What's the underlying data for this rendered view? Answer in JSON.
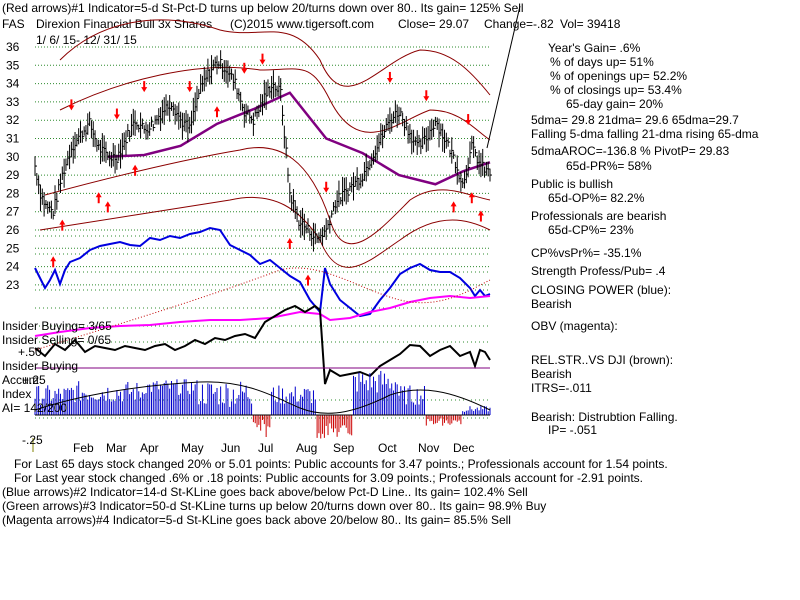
{
  "header": {
    "line1": "(Red arrows)#1 Indicator=5-d St-Pct-D turns up below 20/turns down over 80.. Its gain= 125% Sell",
    "symbol": "FAS",
    "name": "Direxion Financial Bull 3x Shares",
    "copyright": "(C)2015 www.tigersoft.com",
    "close": "Close=   29.07",
    "change": "Change=-.82",
    "vol": "Vol=  39418",
    "date_range": "1/ 6/ 15-  12/ 31/ 15"
  },
  "right_panel": [
    "Year's Gain= .6%",
    "% of days up= 51%",
    "% of openings up= 52.2%",
    "% of closings up= 53.4%",
    "65-day gain= 20%",
    "5dma= 29.8 21dma= 29.6 65dma=29.7",
    "Falling 5-dma falling 21-dma rising 65-dma",
    "5dmaAROC=-136.8  %  PivotP= 29.83",
    "65d-PR%= 58%",
    "Public is bullish",
    "65d-OP%= 82.2%",
    "Professionals are bearish",
    "65d-CP%= 23%",
    "CP%vsPr%= -35.1%",
    "Strength Profess/Pub= .4",
    "CLOSING POWER (blue):",
    "Bearish",
    "OBV (magenta):",
    "REL.STR..VS DJI (brown):",
    "Bearish",
    "ITRS=-.011",
    "Bearish: Distrubtion Falling.",
    "IP= -.051"
  ],
  "left_panel": {
    "insider_buying": "Insider Buying= 3/65",
    "insider_selling": "Insider Selling= 0/65",
    "plus50": "+.50",
    "insider_buying2": "Insider Buying",
    "accum": "Accum",
    "plus25": "+.25",
    "index": "Index",
    "ai": "AI= 142/200",
    "minus25": "-.25"
  },
  "footer": [
    "For Last 65 days stock changed  20% or  5.01 points:  Public accounts for  3.47 points.;  Professionals account for  1.54 points.",
    "For Last year stock changed  .6% or  .18 points:  Public accounts for  3.09 points.;  Professionals account for -2.91 points.",
    "(Blue arrows)#2 Indicator=14-d St-KLine goes back above/below Pct-D Line.. Its gain= 102.4% Sell",
    "(Green arrows)#3 Indicator=50-d St-KLine turns up below 20/turns down over 80.. Its gain= 98.9% Buy",
    "(Magenta arrows)#4 Indicator=5-d St-KLine goes back above 20/below 80.. Its gain= 85.5% Sell"
  ],
  "colors": {
    "grid": "#2e8b2e",
    "price": "#000000",
    "band": "#c00000",
    "ma65": "#800080",
    "closing_power": "#0000e0",
    "obv": "#ff00ff",
    "rel_strength": "#000000",
    "accum_pos": "#0000cc",
    "accum_neg": "#cc0000",
    "arrow": "#ff0000"
  },
  "chart_data": {
    "type": "line",
    "title": "FAS Direxion Financial Bull 3x Shares",
    "ylim": [
      22,
      36
    ],
    "y_ticks": [
      23,
      24,
      25,
      26,
      27,
      28,
      29,
      30,
      31,
      32,
      33,
      34,
      35,
      36
    ],
    "x_ticks": [
      "Feb",
      "Mar",
      "Apr",
      "May",
      "Jun",
      "Jul",
      "Aug",
      "Sep",
      "Oct",
      "Nov",
      "Dec"
    ],
    "close_series": {
      "name": "Close",
      "x": [
        0,
        3,
        6,
        10,
        15,
        20,
        25,
        30,
        35,
        40,
        45,
        50,
        55,
        60,
        65,
        70,
        75,
        80,
        85,
        90,
        95,
        100,
        105,
        110,
        115,
        120,
        125,
        130,
        135,
        140,
        145,
        150,
        155,
        160,
        165,
        170,
        175,
        180,
        185,
        190,
        195,
        200,
        205,
        210,
        215,
        220,
        225,
        230,
        235,
        240,
        245,
        250
      ],
      "y": [
        29.5,
        28.0,
        27.3,
        27.0,
        29.0,
        30.5,
        31.2,
        31.8,
        30.5,
        30.0,
        30.0,
        31.0,
        32.0,
        31.5,
        31.8,
        32.5,
        33.0,
        32.0,
        31.5,
        33.5,
        34.5,
        35.2,
        34.8,
        34.0,
        32.5,
        32.0,
        33.0,
        34.0,
        33.5,
        28.0,
        26.5,
        26.0,
        25.5,
        26.0,
        27.5,
        28.0,
        28.5,
        29.0,
        30.0,
        31.0,
        32.0,
        32.5,
        31.5,
        30.5,
        31.0,
        32.0,
        31.0,
        30.0,
        28.5,
        30.5,
        29.5,
        29.07
      ]
    },
    "ma65_series": {
      "x": [
        40,
        60,
        80,
        100,
        120,
        140,
        160,
        180,
        200,
        220,
        235,
        250
      ],
      "y": [
        30.0,
        30.1,
        30.6,
        31.8,
        32.6,
        33.5,
        31.0,
        30.2,
        29.0,
        28.5,
        29.2,
        29.7
      ]
    },
    "red_arrows_down": [
      20,
      45,
      60,
      85,
      115,
      125,
      160,
      195,
      215,
      238
    ],
    "red_arrows_up": [
      10,
      15,
      35,
      40,
      55,
      100,
      140,
      150,
      230,
      240,
      245
    ]
  }
}
